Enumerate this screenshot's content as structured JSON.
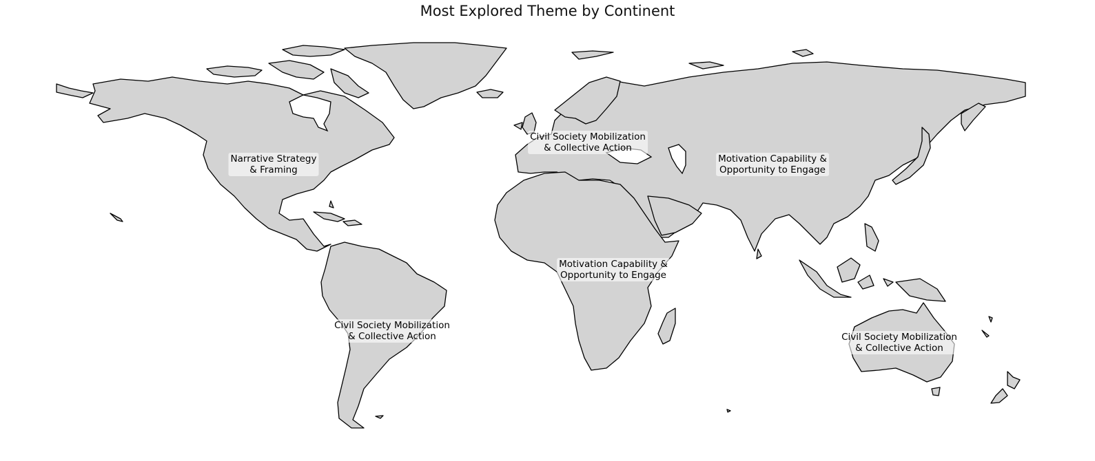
{
  "title": "Most Explored Theme by Continent",
  "colors": {
    "land": "#d3d3d3",
    "border": "#000000",
    "background": "#ffffff"
  },
  "labels": [
    {
      "continent": "North America",
      "line1": "Narrative Strategy",
      "line2": "& Framing"
    },
    {
      "continent": "Europe",
      "line1": "Civil Society Mobilization",
      "line2": "& Collective Action"
    },
    {
      "continent": "Asia",
      "line1": "Motivation Capability &",
      "line2": "Opportunity to Engage"
    },
    {
      "continent": "Africa",
      "line1": "Motivation Capability &",
      "line2": "Opportunity to Engage"
    },
    {
      "continent": "South America",
      "line1": "Civil Society Mobilization",
      "line2": "& Collective Action"
    },
    {
      "continent": "Oceania",
      "line1": "Civil Society Mobilization",
      "line2": "& Collective Action"
    }
  ]
}
